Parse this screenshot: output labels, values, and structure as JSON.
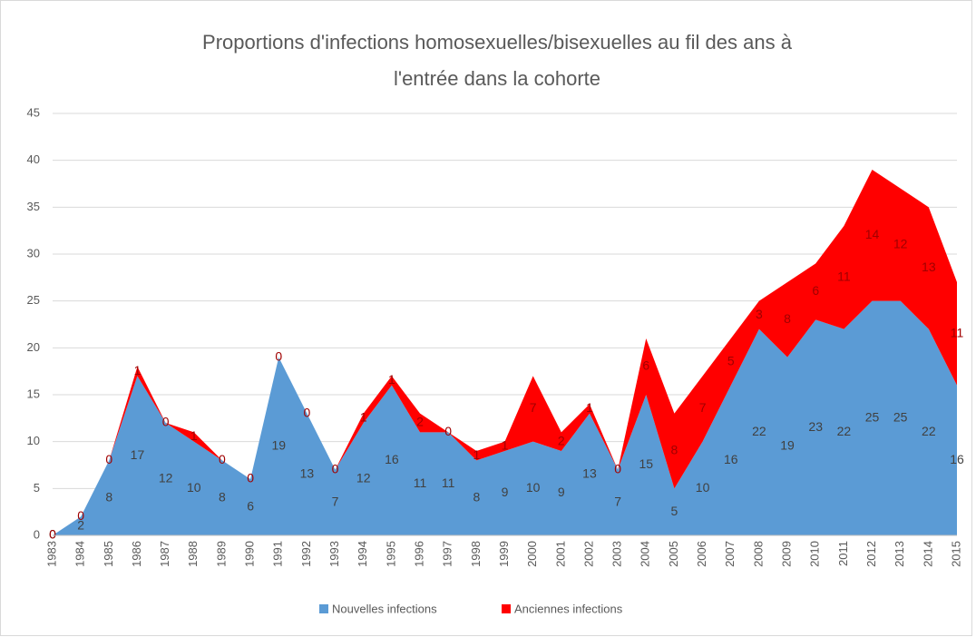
{
  "chart_data": {
    "type": "stacked_area",
    "title": [
      "Proportions d'infections homosexuelles/bisexuelles au fil des ans à",
      "l'entrée dans la cohorte"
    ],
    "categories": [
      "1983",
      "1984",
      "1985",
      "1986",
      "1987",
      "1988",
      "1989",
      "1990",
      "1991",
      "1992",
      "1993",
      "1994",
      "1995",
      "1996",
      "1997",
      "1998",
      "1999",
      "2000",
      "2001",
      "2002",
      "2003",
      "2004",
      "2005",
      "2006",
      "2007",
      "2008",
      "2009",
      "2010",
      "2011",
      "2012",
      "2013",
      "2014",
      "2015"
    ],
    "series": [
      {
        "name": "Nouvelles infections",
        "color": "#5b9bd5",
        "label_color": "#404040",
        "values": [
          0,
          2,
          8,
          17,
          12,
          10,
          8,
          6,
          19,
          13,
          7,
          12,
          16,
          11,
          11,
          8,
          9,
          10,
          9,
          13,
          7,
          15,
          5,
          10,
          16,
          22,
          19,
          23,
          22,
          25,
          25,
          22,
          16
        ]
      },
      {
        "name": "Anciennes infections",
        "color": "#ff0000",
        "label_color": "#a00000",
        "values": [
          0,
          0,
          0,
          1,
          0,
          1,
          0,
          0,
          0,
          0,
          0,
          1,
          1,
          2,
          0,
          1,
          1,
          7,
          2,
          1,
          0,
          6,
          8,
          7,
          5,
          3,
          8,
          6,
          11,
          14,
          12,
          13,
          11
        ]
      }
    ],
    "ylim": [
      0,
      45
    ],
    "yticks": [
      0,
      5,
      10,
      15,
      20,
      25,
      30,
      35,
      40,
      45
    ],
    "grid": true,
    "legend": "bottom"
  }
}
